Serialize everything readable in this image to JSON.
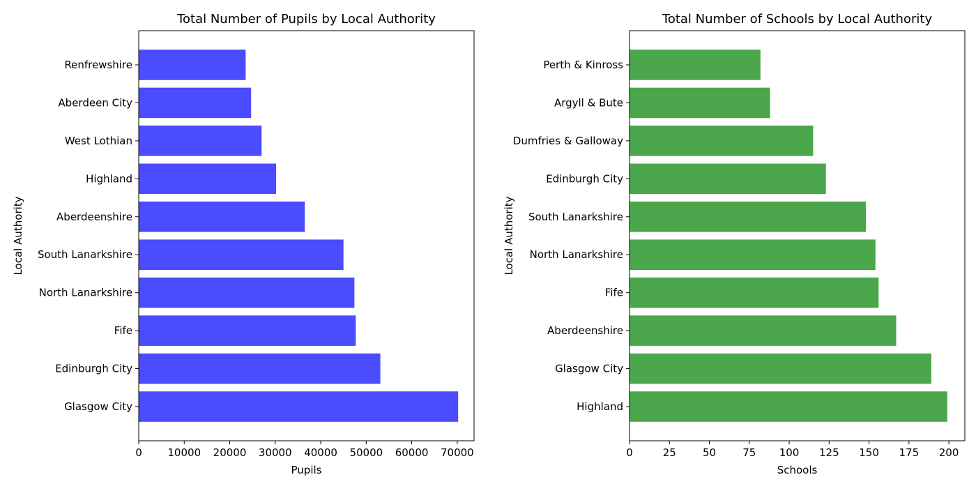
{
  "chart_data": [
    {
      "type": "barh",
      "title": "Total Number of Pupils by Local Authority",
      "x_label": "Pupils",
      "y_label": "Local Authority",
      "categories": [
        "Renfrewshire",
        "Aberdeen City",
        "West Lothian",
        "Highland",
        "Aberdeenshire",
        "South Lanarkshire",
        "North Lanarkshire",
        "Fife",
        "Edinburgh City",
        "Glasgow City"
      ],
      "values": [
        23500,
        24700,
        27000,
        30200,
        36500,
        45000,
        47400,
        47700,
        53100,
        70200
      ],
      "color": "#4b4bff",
      "xlim": [
        0,
        73700
      ],
      "xticks": [
        0,
        10000,
        20000,
        30000,
        40000,
        50000,
        60000,
        70000
      ]
    },
    {
      "type": "barh",
      "title": "Total Number of Schools by Local Authority",
      "x_label": "Schools",
      "y_label": "Local Authority",
      "categories": [
        "Perth & Kinross",
        "Argyll & Bute",
        "Dumfries & Galloway",
        "Edinburgh City",
        "South Lanarkshire",
        "North Lanarkshire",
        "Fife",
        "Aberdeenshire",
        "Glasgow City",
        "Highland"
      ],
      "values": [
        82,
        88,
        115,
        123,
        148,
        154,
        156,
        167,
        189,
        199
      ],
      "color": "#4ca64c",
      "xlim": [
        0,
        210
      ],
      "xticks": [
        0,
        25,
        50,
        75,
        100,
        125,
        150,
        175,
        200
      ]
    }
  ]
}
